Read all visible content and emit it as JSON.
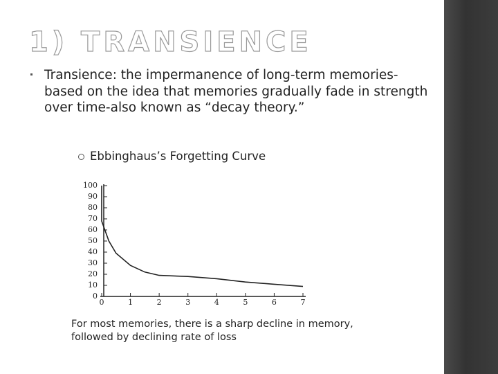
{
  "slide": {
    "title": "1) TRANSIENCE",
    "bullet": "Transience: the impermanence of long-term memories-based on the idea that memories gradually fade in strength over time-also known as “decay theory.”",
    "sub_bullet": "Ebbinghaus’s Forgetting Curve",
    "caption": "For most memories, there is a sharp decline in memory, followed by declining rate of loss"
  },
  "chart_data": {
    "type": "line",
    "x": [
      0,
      0,
      0.25,
      0.5,
      1,
      1.5,
      2,
      3,
      4,
      5,
      6,
      7
    ],
    "values": [
      100,
      68,
      50,
      39,
      28,
      22,
      19,
      18,
      16,
      13,
      11,
      9
    ],
    "color": "#222222",
    "xlim": [
      0,
      7
    ],
    "xticks": [
      0,
      1,
      2,
      3,
      4,
      5,
      6,
      7
    ],
    "ylim": [
      0,
      100
    ],
    "yticks": [
      0,
      10,
      20,
      30,
      40,
      50,
      60,
      70,
      80,
      90,
      100
    ]
  }
}
